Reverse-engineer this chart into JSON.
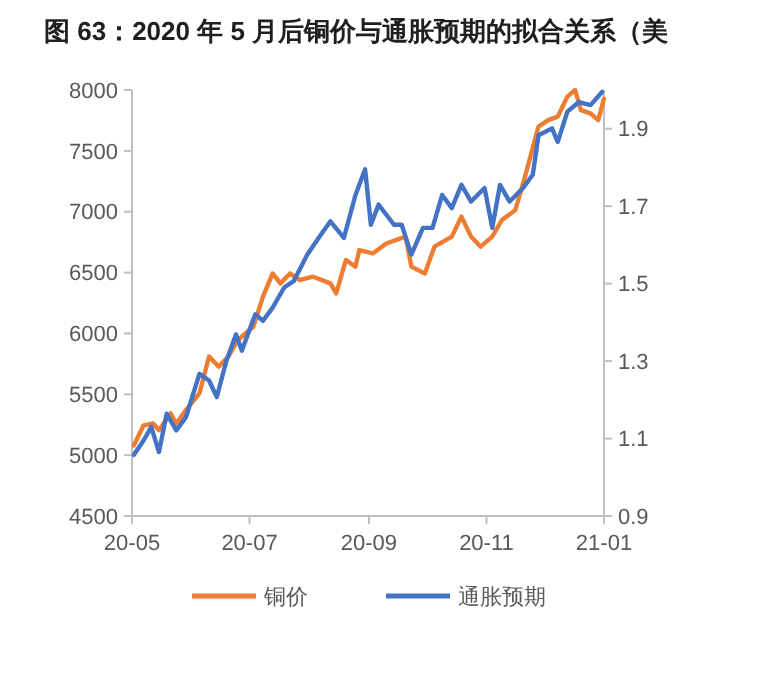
{
  "chart_data": {
    "type": "line",
    "title": "图 63：2020 年 5 月后铜价与通胀预期的拟合关系（美",
    "xlim": [
      "2020-05-01",
      "2021-01-01"
    ],
    "xticks": [
      {
        "value": "2020-05-01",
        "label": "20-05"
      },
      {
        "value": "2020-07-01",
        "label": "20-07"
      },
      {
        "value": "2020-09-01",
        "label": "20-09"
      },
      {
        "value": "2020-11-01",
        "label": "20-11"
      },
      {
        "value": "2021-01-01",
        "label": "21-01"
      }
    ],
    "ylim": [
      4500,
      8000
    ],
    "yticks": [
      4500,
      5000,
      5500,
      6000,
      6500,
      7000,
      7500,
      8000
    ],
    "y2lim": [
      0.9,
      2.0
    ],
    "y2ticks": [
      0.9,
      1.1,
      1.3,
      1.5,
      1.7,
      1.9
    ],
    "legend": "bottom",
    "grid": false,
    "series": [
      {
        "name": "铜价",
        "color": "#ed7d31",
        "x": [
          "2020-05-02",
          "2020-05-07",
          "2020-05-12",
          "2020-05-15",
          "2020-05-21",
          "2020-05-24",
          "2020-05-29",
          "2020-06-05",
          "2020-06-10",
          "2020-06-15",
          "2020-06-20",
          "2020-06-25",
          "2020-07-03",
          "2020-07-08",
          "2020-07-13",
          "2020-07-17",
          "2020-07-22",
          "2020-07-27",
          "2020-08-03",
          "2020-08-12",
          "2020-08-15",
          "2020-08-20",
          "2020-08-25",
          "2020-08-27",
          "2020-09-03",
          "2020-09-10",
          "2020-09-20",
          "2020-09-23",
          "2020-09-30",
          "2020-10-05",
          "2020-10-14",
          "2020-10-19",
          "2020-10-24",
          "2020-10-29",
          "2020-11-04",
          "2020-11-09",
          "2020-11-16",
          "2020-11-21",
          "2020-11-28",
          "2020-12-03",
          "2020-12-08",
          "2020-12-13",
          "2020-12-17",
          "2020-12-20",
          "2020-12-25",
          "2020-12-29",
          "2021-01-01"
        ],
        "values": [
          5080,
          5245,
          5260,
          5205,
          5343,
          5260,
          5370,
          5507,
          5810,
          5727,
          5810,
          5946,
          6056,
          6302,
          6493,
          6411,
          6493,
          6439,
          6466,
          6411,
          6329,
          6603,
          6549,
          6685,
          6657,
          6739,
          6795,
          6549,
          6493,
          6713,
          6795,
          6960,
          6795,
          6713,
          6795,
          6932,
          7014,
          7288,
          7699,
          7753,
          7781,
          7946,
          8000,
          7835,
          7808,
          7753,
          7929
        ]
      },
      {
        "name": "通胀预期",
        "color": "#4472c4",
        "axis": "y2",
        "x": [
          "2020-05-02",
          "2020-05-07",
          "2020-05-11",
          "2020-05-15",
          "2020-05-19",
          "2020-05-24",
          "2020-05-29",
          "2020-06-05",
          "2020-06-10",
          "2020-06-14",
          "2020-06-19",
          "2020-06-24",
          "2020-06-27",
          "2020-07-04",
          "2020-07-08",
          "2020-07-13",
          "2020-07-19",
          "2020-07-24",
          "2020-07-31",
          "2020-08-07",
          "2020-08-12",
          "2020-08-19",
          "2020-08-25",
          "2020-08-30",
          "2020-09-02",
          "2020-09-06",
          "2020-09-14",
          "2020-09-18",
          "2020-09-23",
          "2020-09-29",
          "2020-10-04",
          "2020-10-09",
          "2020-10-14",
          "2020-10-19",
          "2020-10-24",
          "2020-10-31",
          "2020-11-04",
          "2020-11-08",
          "2020-11-13",
          "2020-11-20",
          "2020-11-25",
          "2020-11-28",
          "2020-12-05",
          "2020-12-08",
          "2020-12-13",
          "2020-12-19",
          "2020-12-25",
          "2020-12-31"
        ],
        "values": [
          1.058,
          1.095,
          1.13,
          1.065,
          1.164,
          1.121,
          1.155,
          1.267,
          1.25,
          1.207,
          1.301,
          1.369,
          1.327,
          1.421,
          1.404,
          1.438,
          1.49,
          1.507,
          1.575,
          1.626,
          1.661,
          1.618,
          1.729,
          1.795,
          1.652,
          1.704,
          1.652,
          1.652,
          1.575,
          1.644,
          1.644,
          1.729,
          1.695,
          1.755,
          1.712,
          1.747,
          1.644,
          1.755,
          1.712,
          1.747,
          1.781,
          1.883,
          1.901,
          1.866,
          1.944,
          1.969,
          1.961,
          1.995
        ]
      }
    ]
  }
}
